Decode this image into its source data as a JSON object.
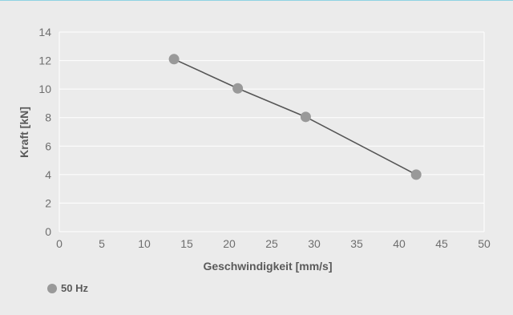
{
  "chart_data": {
    "type": "line",
    "xlabel": "Geschwindigkeit [mm/s]",
    "ylabel": "Kraft [kN]",
    "xlim": [
      0,
      50
    ],
    "ylim": [
      0,
      14
    ],
    "xticks": [
      0,
      5,
      10,
      15,
      20,
      25,
      30,
      35,
      40,
      45,
      50
    ],
    "yticks": [
      0,
      2,
      4,
      6,
      8,
      10,
      12,
      14
    ],
    "grid": "horizontal",
    "legend_position": "bottom-left",
    "series": [
      {
        "name": "50 Hz",
        "color": "#999999",
        "line_color": "#555555",
        "x": [
          13.5,
          21,
          29,
          42
        ],
        "y": [
          12.1,
          10.05,
          8.05,
          4
        ]
      }
    ]
  }
}
